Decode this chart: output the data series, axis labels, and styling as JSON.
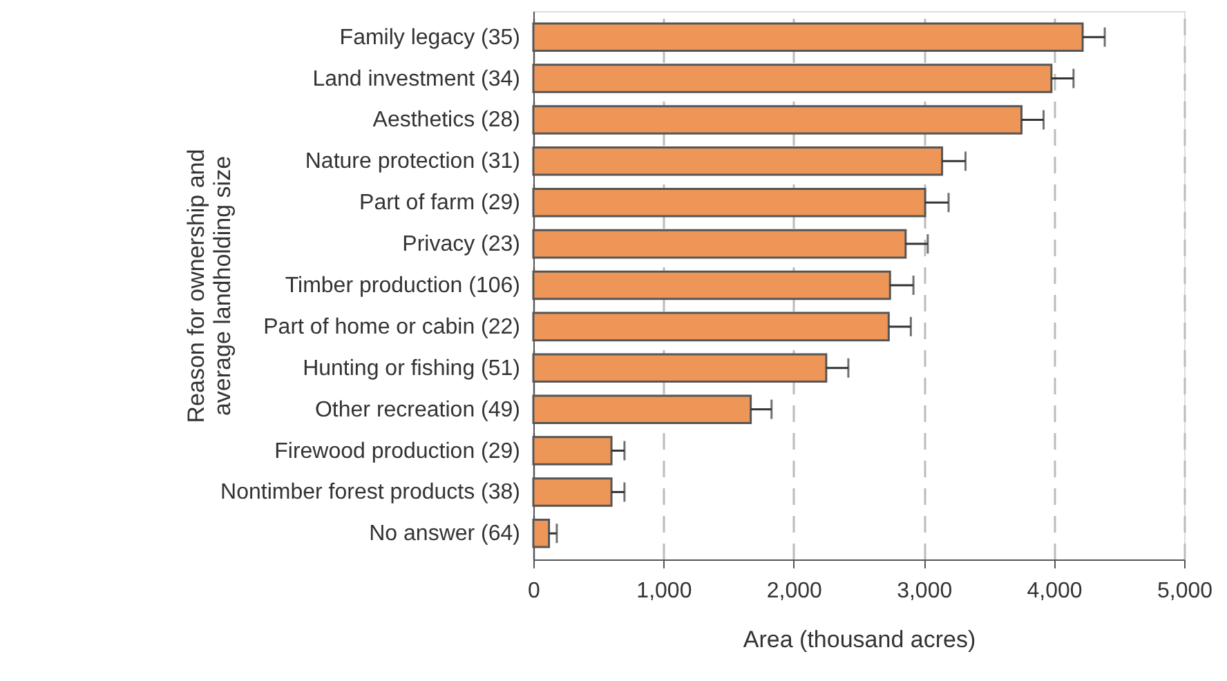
{
  "chart_data": {
    "type": "bar",
    "orientation": "horizontal",
    "categories": [
      "Family legacy (35)",
      "Land investment (34)",
      "Aesthetics (28)",
      "Nature protection (31)",
      "Part of farm (29)",
      "Privacy (23)",
      "Timber production (106)",
      "Part of home or cabin (22)",
      "Hunting or fishing (51)",
      "Other recreation (49)",
      "Firewood production (29)",
      "Nontimber forest products (38)",
      "No answer (64)"
    ],
    "values": [
      4220,
      3980,
      3750,
      3140,
      3010,
      2860,
      2740,
      2730,
      2250,
      1670,
      600,
      600,
      120
    ],
    "errors": [
      [
        4220,
        4390
      ],
      [
        3980,
        4150
      ],
      [
        3750,
        3920
      ],
      [
        3140,
        3320
      ],
      [
        3010,
        3190
      ],
      [
        2860,
        3030
      ],
      [
        2740,
        2920
      ],
      [
        2730,
        2900
      ],
      [
        2250,
        2420
      ],
      [
        1670,
        1830
      ],
      [
        600,
        700
      ],
      [
        600,
        700
      ],
      [
        120,
        180
      ]
    ],
    "color": "#ee9658",
    "xlabel": "Area (thousand acres)",
    "ylabel": "Reason for ownership and\naverage landholding size",
    "xlim": [
      0,
      5000
    ],
    "xticks": [
      {
        "value": 0,
        "label": "0"
      },
      {
        "value": 1000,
        "label": "1,000"
      },
      {
        "value": 2000,
        "label": "2,000"
      },
      {
        "value": 3000,
        "label": "3,000"
      },
      {
        "value": 4000,
        "label": "4,000"
      },
      {
        "value": 5000,
        "label": "5,000"
      }
    ],
    "grid": "x"
  }
}
